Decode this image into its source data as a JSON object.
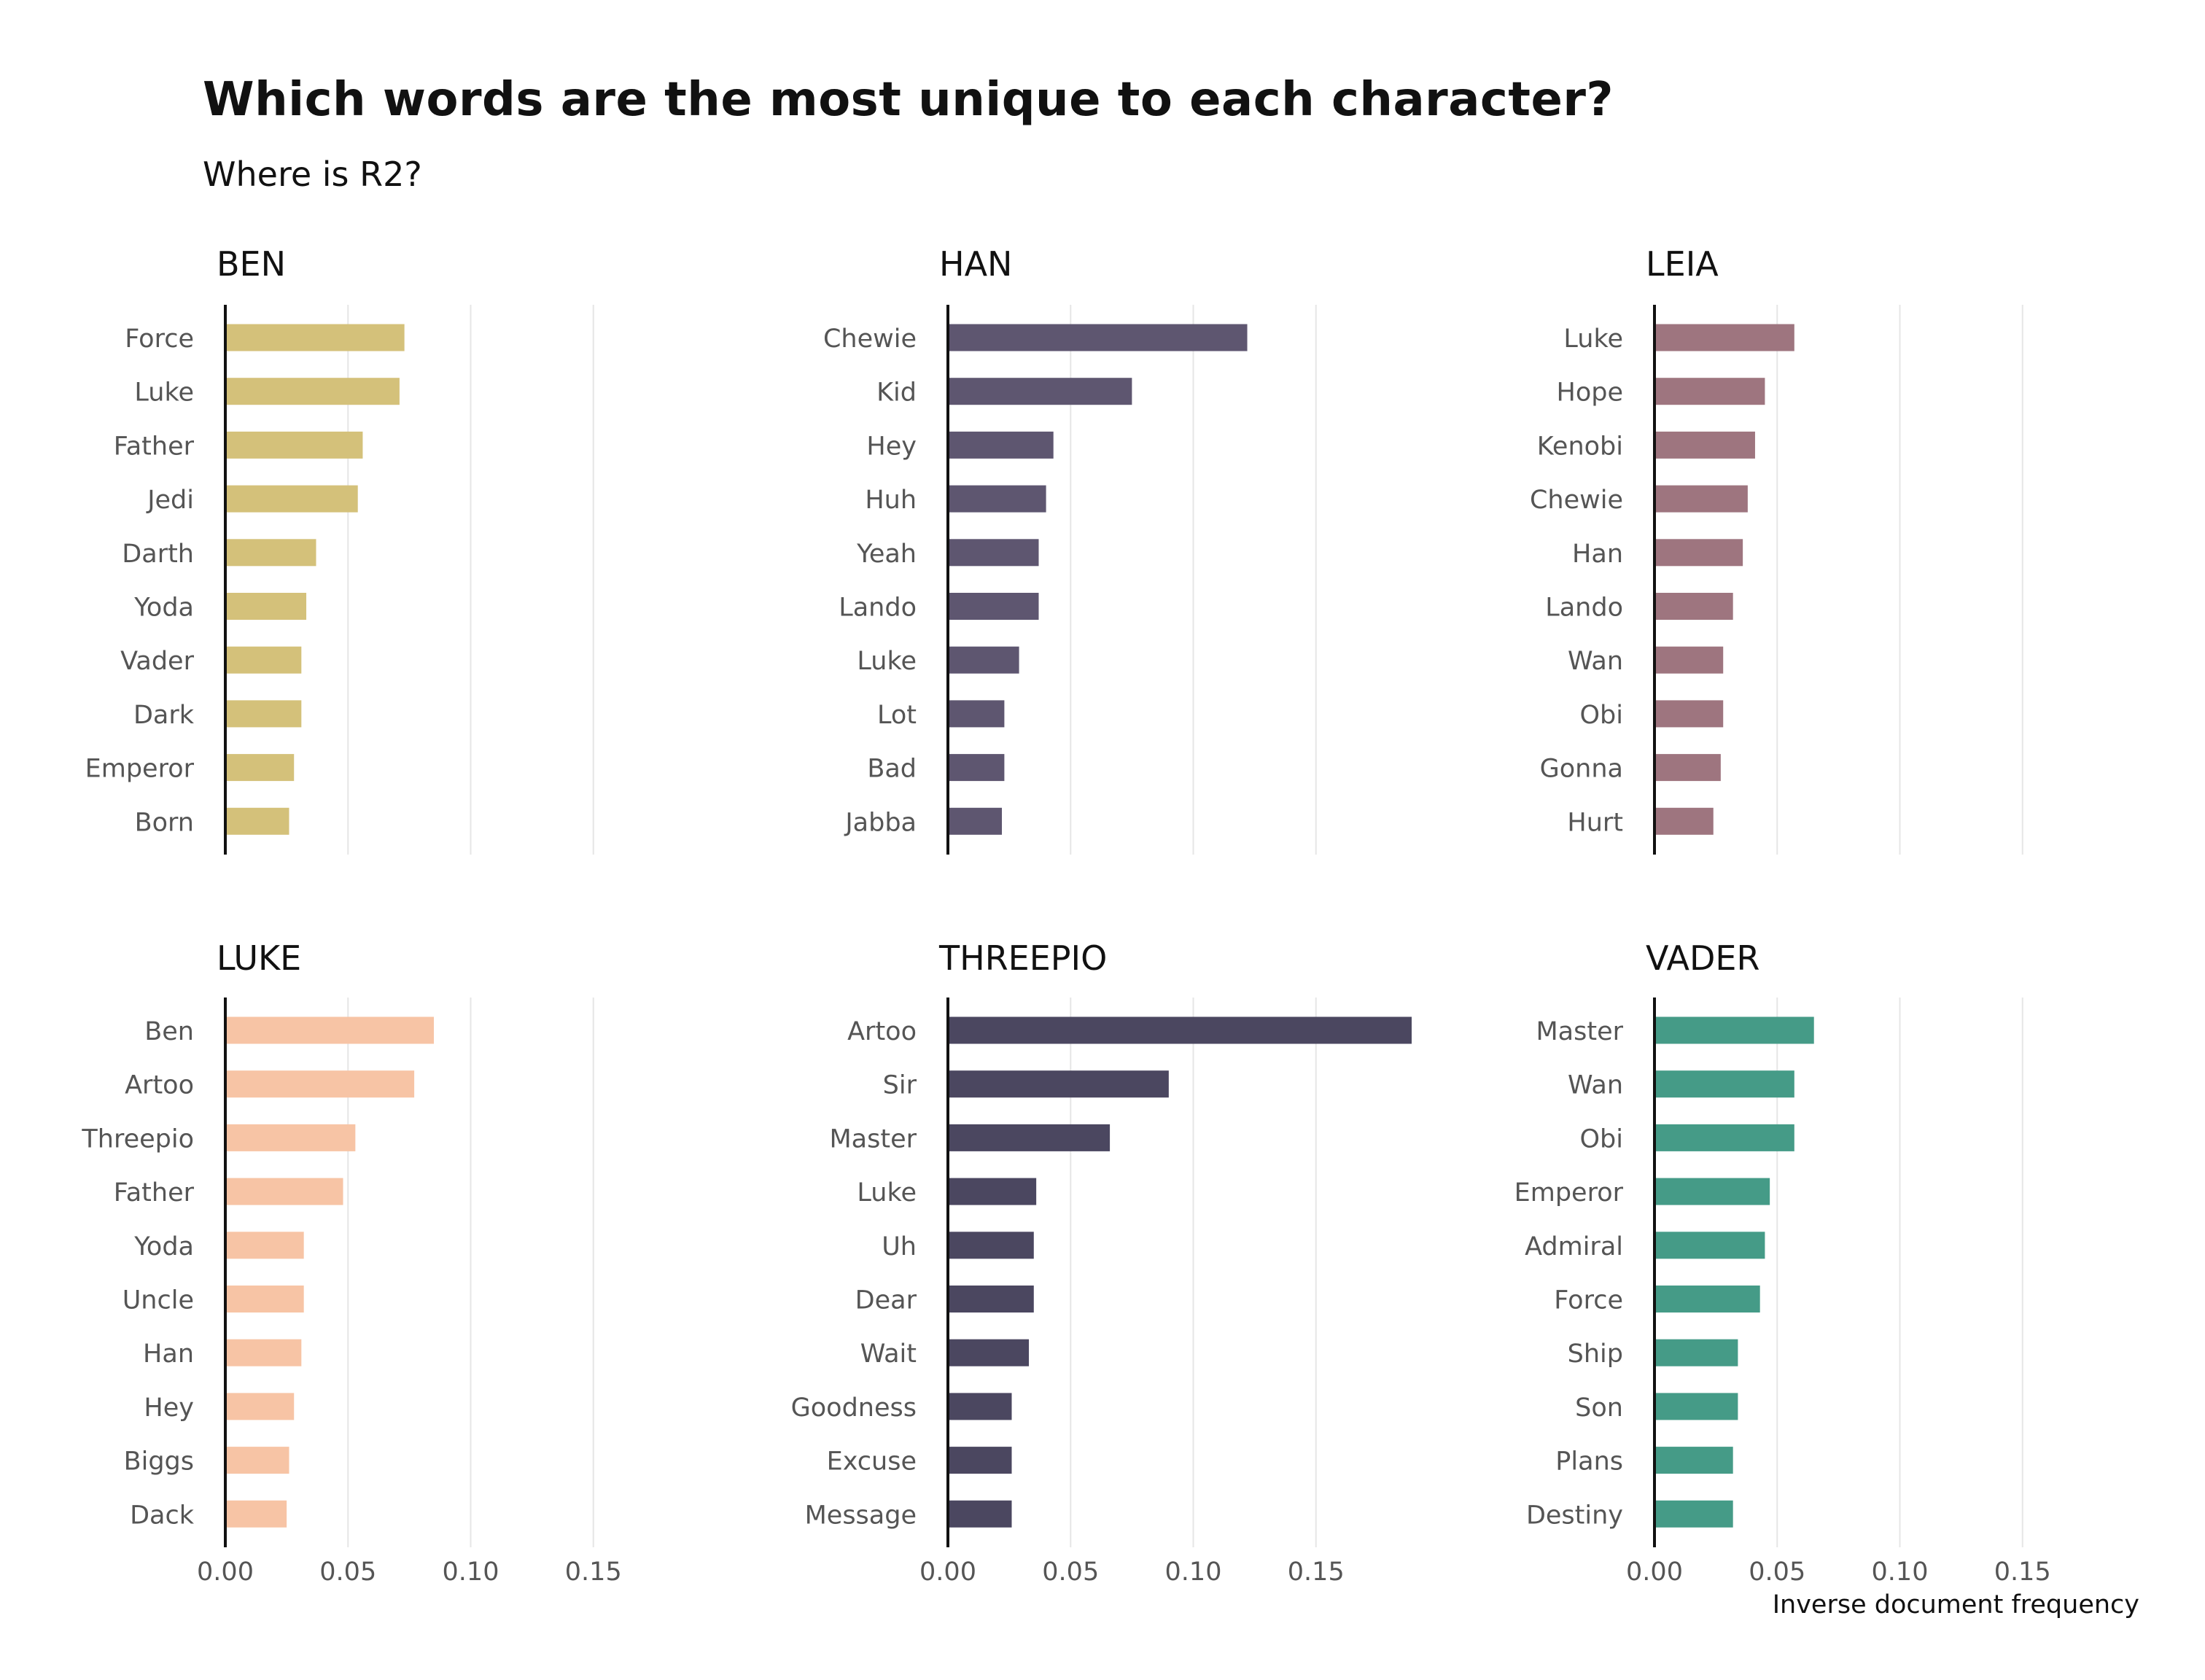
{
  "title": "Which words are the most unique to each character?",
  "subtitle": "Where is R2?",
  "x_axis_label": "Inverse document frequency",
  "chart_data": [
    {
      "type": "bar",
      "title": "BEN",
      "color": "#d4c17a",
      "categories": [
        "Force",
        "Luke",
        "Father",
        "Jedi",
        "Darth",
        "Yoda",
        "Vader",
        "Dark",
        "Emperor",
        "Born"
      ],
      "values": [
        0.073,
        0.071,
        0.056,
        0.054,
        0.037,
        0.033,
        0.031,
        0.031,
        0.028,
        0.026
      ],
      "xlim": [
        0,
        0.19
      ],
      "xticks": [
        0,
        0.05,
        0.1,
        0.15
      ],
      "xtick_labels": [],
      "xlabel": ""
    },
    {
      "type": "bar",
      "title": "HAN",
      "color": "#5e5670",
      "categories": [
        "Chewie",
        "Kid",
        "Hey",
        "Huh",
        "Yeah",
        "Lando",
        "Luke",
        "Lot",
        "Bad",
        "Jabba"
      ],
      "values": [
        0.122,
        0.075,
        0.043,
        0.04,
        0.037,
        0.037,
        0.029,
        0.023,
        0.023,
        0.022
      ],
      "xlim": [
        0,
        0.19
      ],
      "xticks": [
        0,
        0.05,
        0.1,
        0.15
      ],
      "xtick_labels": [],
      "xlabel": ""
    },
    {
      "type": "bar",
      "title": "LEIA",
      "color": "#9e757f",
      "categories": [
        "Luke",
        "Hope",
        "Kenobi",
        "Chewie",
        "Han",
        "Lando",
        "Wan",
        "Obi",
        "Gonna",
        "Hurt"
      ],
      "values": [
        0.057,
        0.045,
        0.041,
        0.038,
        0.036,
        0.032,
        0.028,
        0.028,
        0.027,
        0.024
      ],
      "xlim": [
        0,
        0.19
      ],
      "xticks": [
        0,
        0.05,
        0.1,
        0.15
      ],
      "xtick_labels": [],
      "xlabel": ""
    },
    {
      "type": "bar",
      "title": "LUKE",
      "color": "#f7c4a5",
      "categories": [
        "Ben",
        "Artoo",
        "Threepio",
        "Father",
        "Yoda",
        "Uncle",
        "Han",
        "Hey",
        "Biggs",
        "Dack"
      ],
      "values": [
        0.085,
        0.077,
        0.053,
        0.048,
        0.032,
        0.032,
        0.031,
        0.028,
        0.026,
        0.025
      ],
      "xlim": [
        0,
        0.19
      ],
      "xticks": [
        0,
        0.05,
        0.1,
        0.15
      ],
      "xtick_labels": [
        "0.00",
        "0.05",
        "0.10",
        "0.15"
      ],
      "xlabel": ""
    },
    {
      "type": "bar",
      "title": "THREEPIO",
      "color": "#4b4760",
      "categories": [
        "Artoo",
        "Sir",
        "Master",
        "Luke",
        "Uh",
        "Dear",
        "Wait",
        "Goodness",
        "Excuse",
        "Message"
      ],
      "values": [
        0.189,
        0.09,
        0.066,
        0.036,
        0.035,
        0.035,
        0.033,
        0.026,
        0.026,
        0.026
      ],
      "xlim": [
        0,
        0.19
      ],
      "xticks": [
        0,
        0.05,
        0.1,
        0.15
      ],
      "xtick_labels": [
        "0.00",
        "0.05",
        "0.10",
        "0.15"
      ],
      "xlabel": ""
    },
    {
      "type": "bar",
      "title": "VADER",
      "color": "#459b87",
      "categories": [
        "Master",
        "Wan",
        "Obi",
        "Emperor",
        "Admiral",
        "Force",
        "Ship",
        "Son",
        "Plans",
        "Destiny"
      ],
      "values": [
        0.065,
        0.057,
        0.057,
        0.047,
        0.045,
        0.043,
        0.034,
        0.034,
        0.032,
        0.032
      ],
      "xlim": [
        0,
        0.19
      ],
      "xticks": [
        0,
        0.05,
        0.1,
        0.15
      ],
      "xtick_labels": [
        "0.00",
        "0.05",
        "0.10",
        "0.15"
      ],
      "xlabel": "Inverse document frequency"
    }
  ]
}
